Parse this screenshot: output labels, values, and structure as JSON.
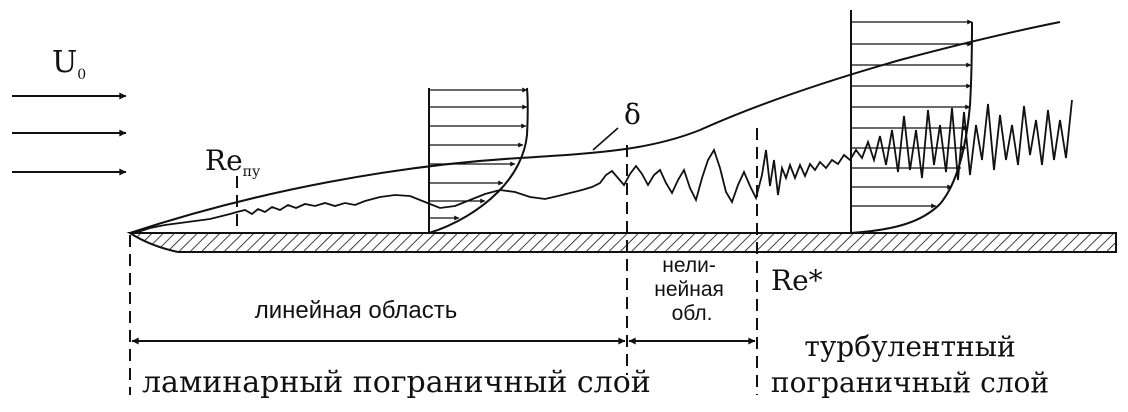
{
  "labels": {
    "u0": "U",
    "u0_sub": "0",
    "delta": "δ",
    "re_ny": "Re",
    "re_ny_sub": "пу",
    "re_star": "Re*",
    "linear_region": "линейная область",
    "nonlinear_1": "нели-",
    "nonlinear_2": "нейная",
    "nonlinear_3": "обл.",
    "laminar_bl": "ламинарный пограничный слой",
    "turbulent_1": "турбулентный",
    "turbulent_2": "пограничный слой"
  }
}
